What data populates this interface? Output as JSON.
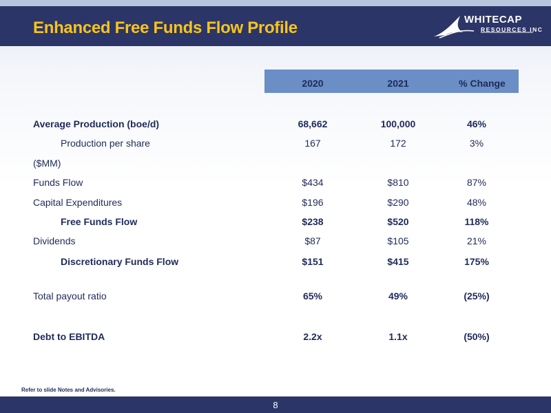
{
  "slide": {
    "title": "Enhanced Free Funds Flow Profile",
    "logo_main": "WHITECAP",
    "logo_sub": "RESOURCES INC",
    "footnote": "Refer to slide Notes and Advisories.",
    "page_number": "8"
  },
  "table": {
    "columns": [
      "2020",
      "2021",
      "% Change"
    ],
    "rows": [
      {
        "label": "Average Production (boe/d)",
        "v2020": "68,662",
        "v2021": "100,000",
        "change": "46%"
      },
      {
        "label": "Production per share",
        "v2020": "167",
        "v2021": "172",
        "change": "3%"
      },
      {
        "label": "($MM)",
        "v2020": "",
        "v2021": "",
        "change": ""
      },
      {
        "label": "Funds Flow",
        "v2020": "$434",
        "v2021": "$810",
        "change": "87%"
      },
      {
        "label": "Capital Expenditures",
        "v2020": "$196",
        "v2021": "$290",
        "change": "48%"
      },
      {
        "label": "Free Funds Flow",
        "v2020": "$238",
        "v2021": "$520",
        "change": "118%"
      },
      {
        "label": "Dividends",
        "v2020": "$87",
        "v2021": "$105",
        "change": "21%"
      },
      {
        "label": "Discretionary Funds Flow",
        "v2020": "$151",
        "v2021": "$415",
        "change": "175%"
      },
      {
        "label": "Total payout ratio",
        "v2020": "65%",
        "v2021": "49%",
        "change": "(25%)"
      },
      {
        "label": "Debt to EBITDA",
        "v2020": "2.2x",
        "v2021": "1.1x",
        "change": "(50%)"
      }
    ]
  },
  "colors": {
    "header_bg": "#2c3567",
    "title_yellow": "#f7c51a",
    "column_header_bg": "#6a8ec5",
    "text_navy": "#1e2a5a"
  }
}
